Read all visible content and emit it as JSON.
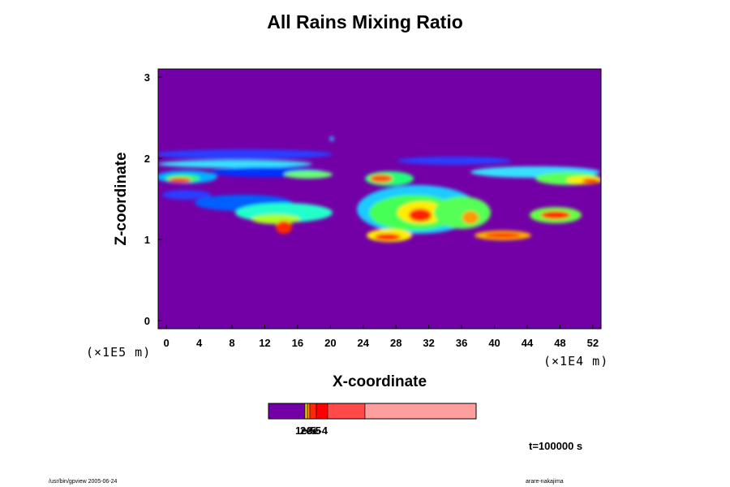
{
  "chart_data": {
    "type": "heatmap",
    "title": "All Rains Mixing Ratio",
    "xlabel": "X-coordinate",
    "ylabel": "Z-coordinate",
    "x_scale_note": "(×1E4 m)",
    "y_scale_note": "(×1E5 m)",
    "x_ticks": [
      "0",
      "4",
      "8",
      "12",
      "16",
      "20",
      "24",
      "28",
      "32",
      "36",
      "40",
      "44",
      "48",
      "52"
    ],
    "y_ticks": [
      "0",
      "1",
      "2",
      "3"
    ],
    "xlim": [
      -1,
      53
    ],
    "ylim": [
      -0.1,
      3.1
    ],
    "colorbar": {
      "colors": [
        "#7300a7",
        "#ffd400",
        "#ff8c00",
        "#ff2a00",
        "#ff0000",
        "#ff4a4a",
        "#ff9e9e"
      ],
      "labels": [
        "1e-5",
        "2e-5",
        "3e-4"
      ]
    },
    "time_label": "t=100000 s",
    "background_color": "#7300a7"
  },
  "footer": {
    "left": "/usr/bin/gpview 2005-06-24",
    "right": "arare-nakajima"
  }
}
